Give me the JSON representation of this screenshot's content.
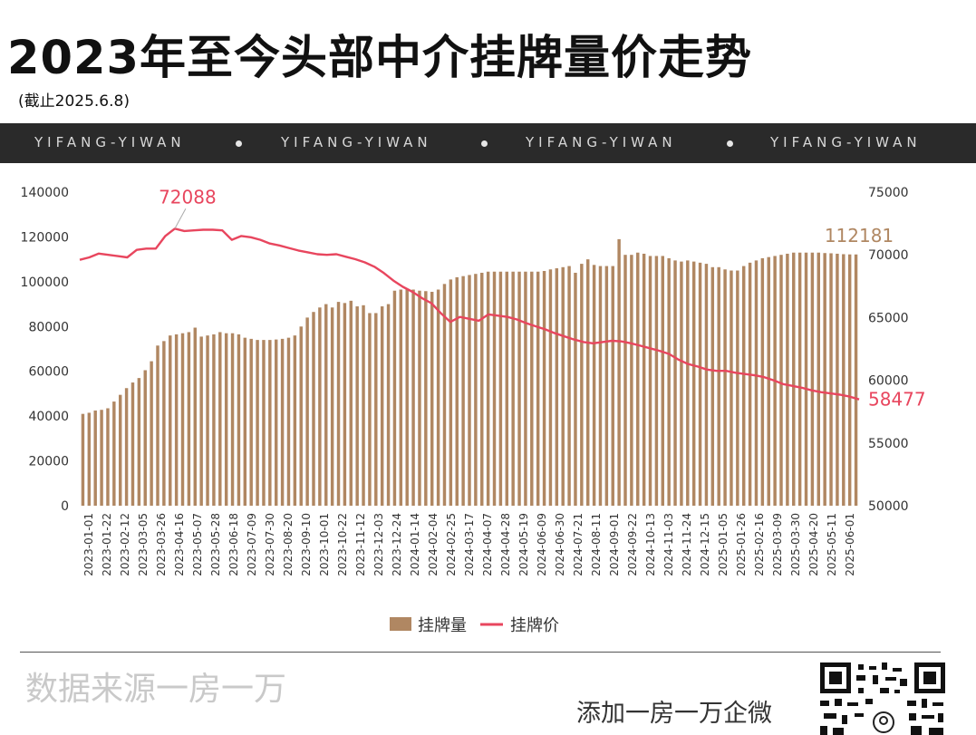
{
  "header": {
    "title": "2023年至今头部中介挂牌量价走势",
    "subtitle": "(截止2025.6.8)",
    "banner_items": [
      "YIFANG-YIWAN",
      "YIFANG-YIWAN",
      "YIFANG-YIWAN",
      "YIFANG-YIWAN"
    ]
  },
  "footer": {
    "source": "数据来源一房一万",
    "wechat": "添加一房一万企微"
  },
  "colors": {
    "bar": "#b08762",
    "line": "#e8465e",
    "banner_bg": "#2a2a2a"
  },
  "chart_data": {
    "type": "bar",
    "legend_position": "bottom",
    "grid": false,
    "series": [
      {
        "name": "挂牌量",
        "kind": "bar",
        "axis": "left",
        "values": [
          41000,
          41500,
          42500,
          42800,
          43500,
          46500,
          49500,
          52500,
          55000,
          57000,
          60500,
          64500,
          71500,
          73500,
          76000,
          76500,
          77000,
          77500,
          79500,
          75500,
          76000,
          76500,
          77500,
          77000,
          77000,
          76500,
          75000,
          74500,
          74000,
          74000,
          74000,
          74200,
          74500,
          75000,
          76000,
          80000,
          84000,
          86500,
          88500,
          90000,
          88500,
          91000,
          90500,
          91500,
          89000,
          89500,
          86000,
          86000,
          89000,
          90000,
          96000,
          96500,
          96800,
          96500,
          96000,
          95800,
          95500,
          96500,
          99000,
          101000,
          102000,
          102500,
          103000,
          103500,
          104000,
          104500,
          104500,
          104500,
          104500,
          104500,
          104500,
          104500,
          104500,
          104500,
          104800,
          105500,
          106000,
          106500,
          107000,
          104000,
          108000,
          110000,
          107500,
          107000,
          107000,
          107000,
          119000,
          112000,
          112000,
          113000,
          112500,
          111500,
          111500,
          111500,
          110500,
          109500,
          109000,
          109500,
          109000,
          108500,
          108000,
          106500,
          106500,
          105500,
          105000,
          105000,
          107000,
          108500,
          109500,
          110500,
          111000,
          111500,
          112000,
          112500,
          113000,
          113000,
          113000,
          113000,
          113000,
          112800,
          112700,
          112500,
          112300,
          112200,
          112181
        ],
        "end_label": "112181"
      },
      {
        "name": "挂牌价",
        "kind": "line",
        "axis": "right",
        "values": [
          69600,
          69800,
          70100,
          70000,
          69900,
          69800,
          70400,
          70500,
          70500,
          71500,
          72088,
          71900,
          71950,
          72000,
          72000,
          71950,
          71200,
          71500,
          71400,
          71200,
          70900,
          70750,
          70550,
          70350,
          70200,
          70050,
          70000,
          70050,
          69850,
          69650,
          69400,
          69050,
          68550,
          67950,
          67450,
          67050,
          66550,
          66150,
          65350,
          64650,
          65050,
          64900,
          64750,
          65250,
          65150,
          65050,
          64850,
          64550,
          64300,
          64050,
          63750,
          63500,
          63250,
          63050,
          62950,
          63050,
          63150,
          63100,
          62950,
          62750,
          62550,
          62350,
          62100,
          61650,
          61300,
          61100,
          60850,
          60750,
          60750,
          60600,
          60500,
          60400,
          60250,
          60000,
          59700,
          59550,
          59400,
          59200,
          59050,
          58950,
          58850,
          58700,
          58477
        ],
        "max_label": "72088",
        "end_label": "58477"
      }
    ],
    "x_tick_labels": [
      "2023-01-01",
      "2023-01-22",
      "2023-02-12",
      "2023-03-05",
      "2023-03-26",
      "2023-04-16",
      "2023-05-07",
      "2023-05-28",
      "2023-06-18",
      "2023-07-09",
      "2023-07-30",
      "2023-08-20",
      "2023-09-10",
      "2023-10-01",
      "2023-10-22",
      "2023-11-12",
      "2023-12-03",
      "2023-12-24",
      "2024-01-14",
      "2024-02-04",
      "2024-02-25",
      "2024-03-17",
      "2024-04-07",
      "2024-04-28",
      "2024-05-19",
      "2024-06-09",
      "2024-06-30",
      "2024-07-21",
      "2024-08-11",
      "2024-09-01",
      "2024-09-22",
      "2024-10-13",
      "2024-11-03",
      "2024-11-24",
      "2024-12-15",
      "2025-01-05",
      "2025-01-26",
      "2025-02-16",
      "2025-03-09",
      "2025-03-30",
      "2025-04-20",
      "2025-05-11",
      "2025-06-01"
    ],
    "y_left": {
      "ylim": [
        0,
        140000
      ],
      "ticks": [
        "0",
        "20000",
        "40000",
        "60000",
        "80000",
        "100000",
        "120000",
        "140000"
      ]
    },
    "y_right": {
      "ylim": [
        50000,
        75000
      ],
      "ticks": [
        "50000",
        "55000",
        "60000",
        "65000",
        "70000",
        "75000"
      ]
    }
  }
}
